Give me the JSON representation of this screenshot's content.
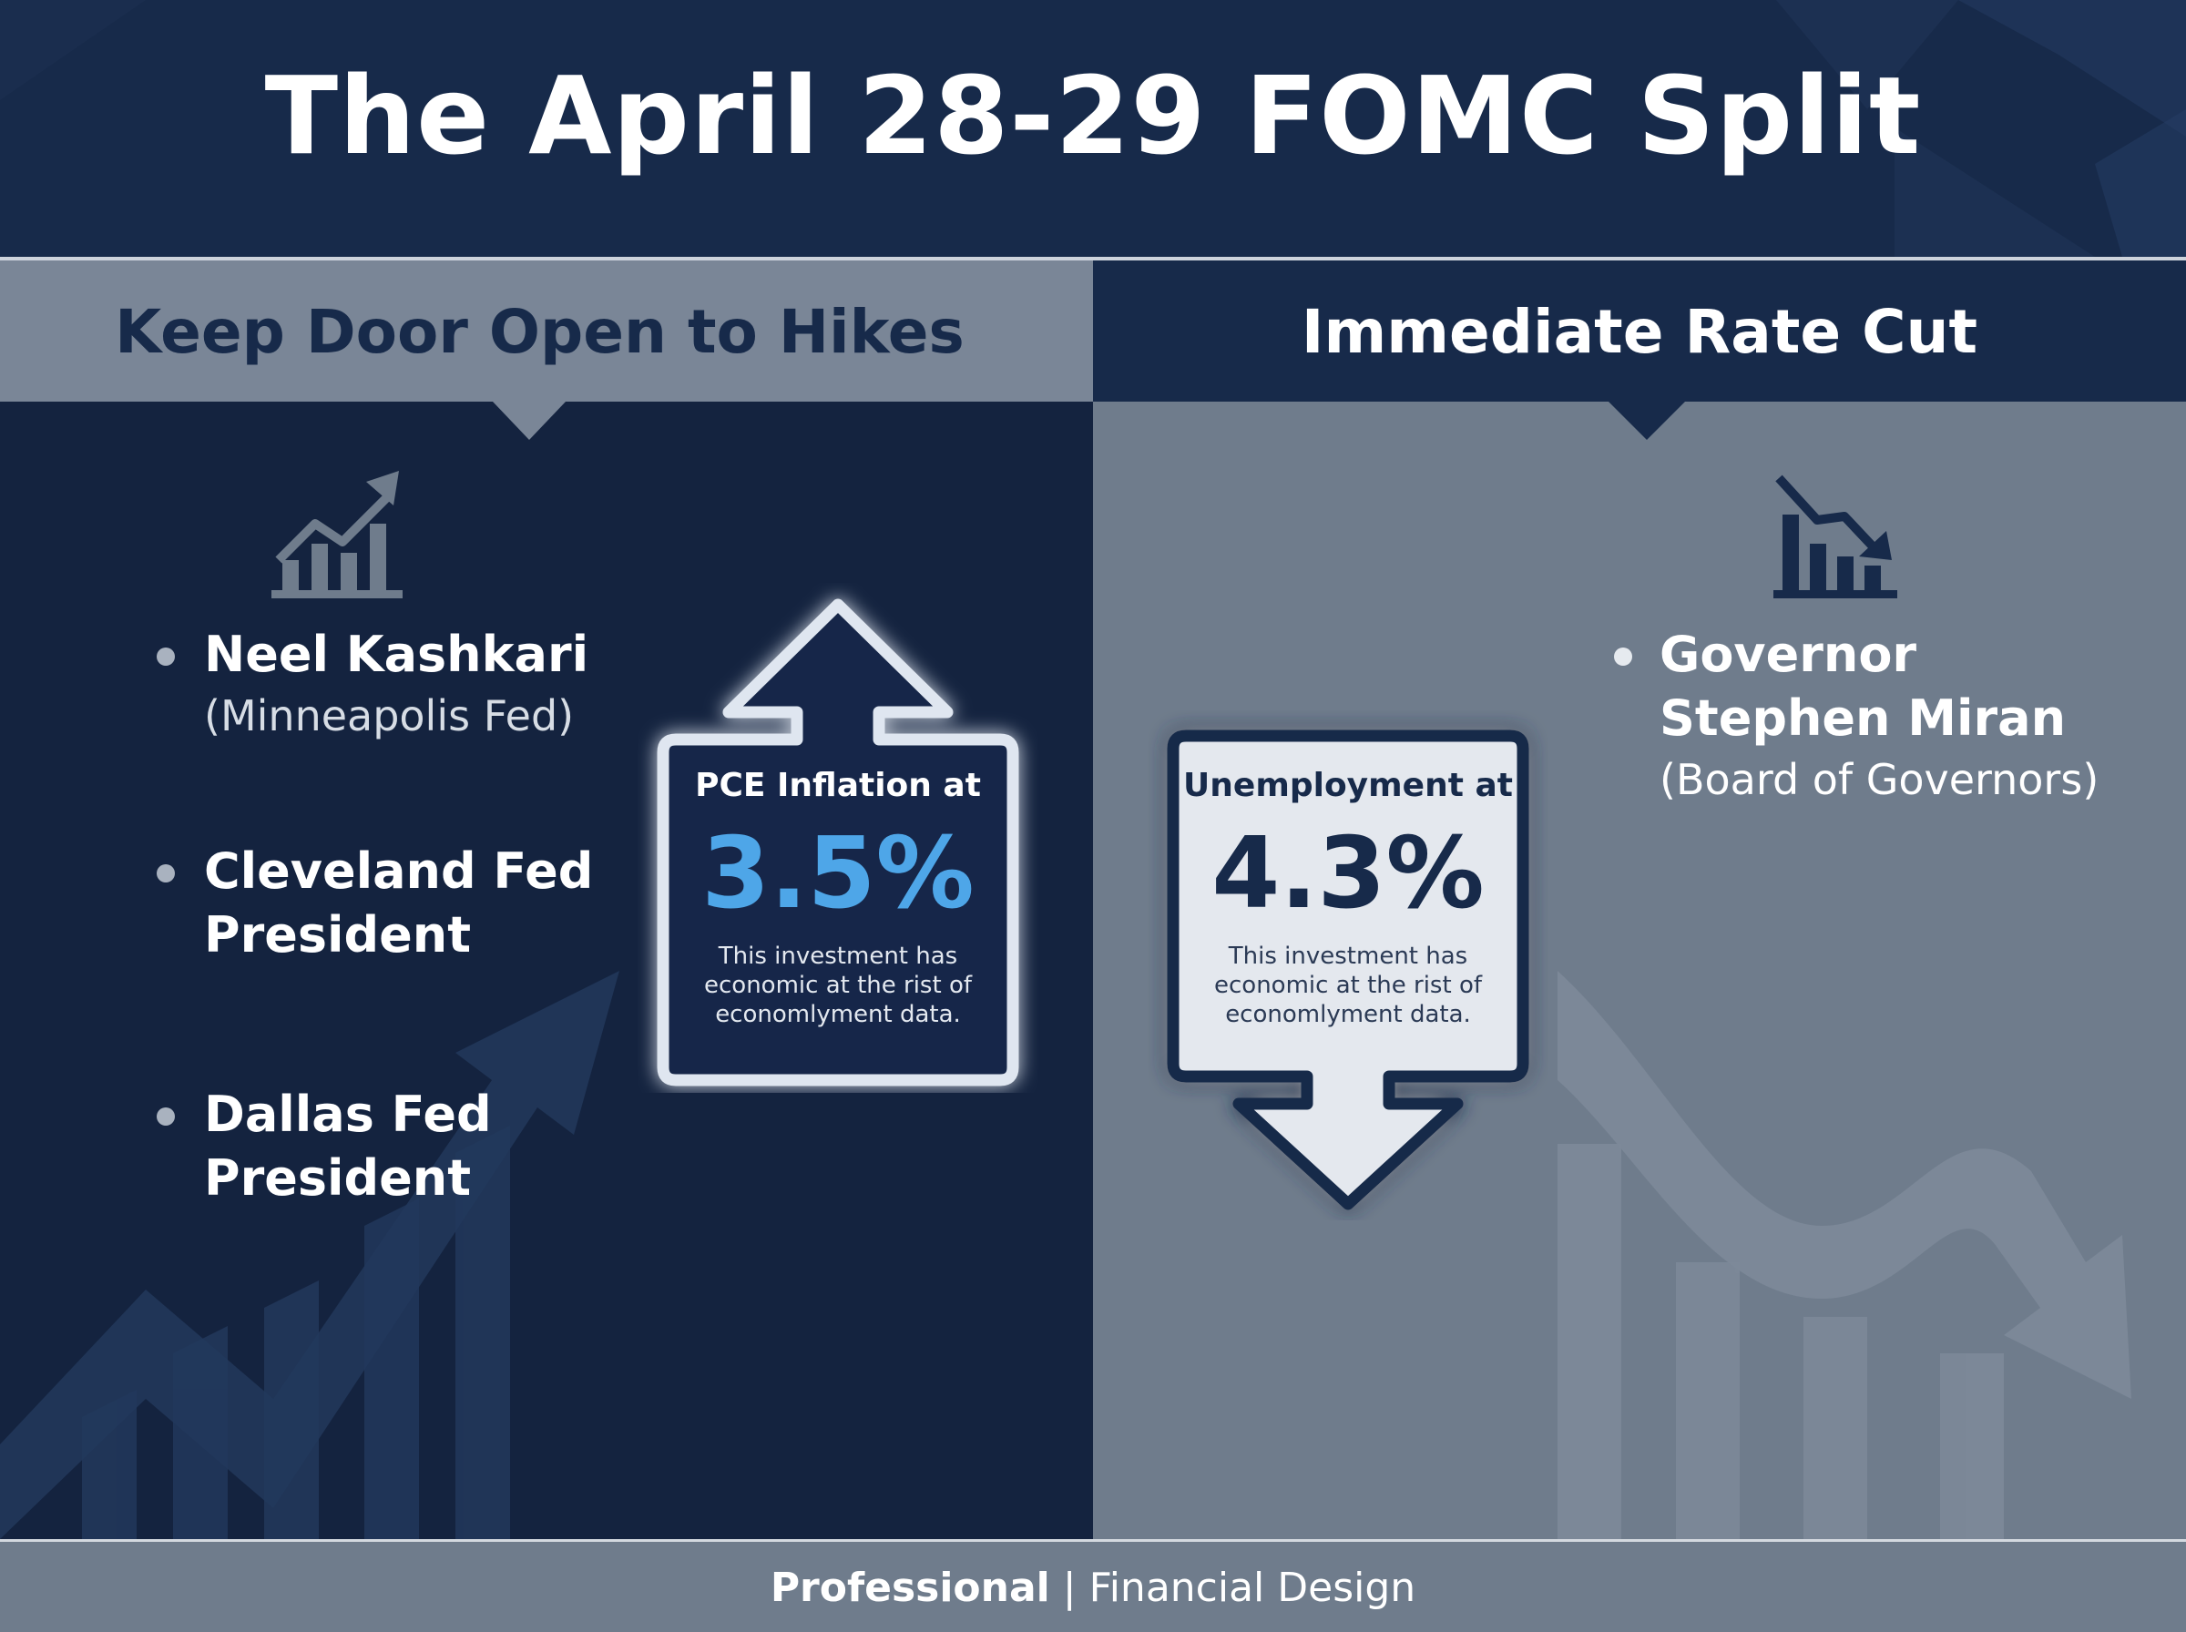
{
  "title": "The April 28-29 FOMC Split",
  "left": {
    "heading": "Keep Door Open to Hikes",
    "members": [
      {
        "name_line1": "Neel Kashkari",
        "name_line2": "",
        "affiliation": "(Minneapolis Fed)"
      },
      {
        "name_line1": "Cleveland Fed",
        "name_line2": "President",
        "affiliation": ""
      },
      {
        "name_line1": "Dallas Fed",
        "name_line2": "President",
        "affiliation": ""
      }
    ],
    "callout": {
      "label": "PCE Inflation at",
      "value": "3.5%",
      "desc_line1": "This investment has",
      "desc_line2": "economic at the rist of",
      "desc_line3": "economlyment data."
    },
    "icon": "rising-bar-chart-icon"
  },
  "right": {
    "heading": "Immediate Rate Cut",
    "members": [
      {
        "name_line1": "Governor",
        "name_line2": "Stephen Miran",
        "affiliation": "(Board of Governors)"
      }
    ],
    "callout": {
      "label": "Unemployment at",
      "value": "4.3%",
      "desc_line1": "This investment has",
      "desc_line2": "economic at the rist of",
      "desc_line3": "economlyment data."
    },
    "icon": "falling-bar-chart-icon"
  },
  "footer": {
    "bold": "Professional",
    "separator": "|",
    "rest": "Financial Design"
  },
  "colors": {
    "navy": "#14233f",
    "slate": "#6f7c8c",
    "accent_blue": "#4ea6e8",
    "white": "#ffffff"
  }
}
